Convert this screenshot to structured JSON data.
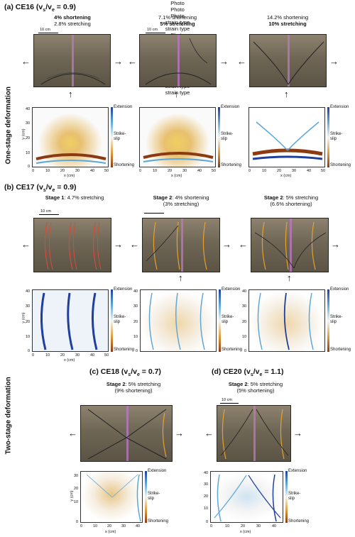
{
  "side_labels": {
    "one_stage": "One-stage deformation",
    "two_stage": "Two-stage deformation"
  },
  "sections": {
    "a": {
      "prefix": "(a) CE16 (v",
      "ratio": " = 0.9)"
    },
    "b": {
      "prefix": "(b) CE17 (v",
      "ratio": " = 0.9)"
    },
    "c": {
      "prefix": "(c) CE18 (v",
      "ratio": " = 0.7)"
    },
    "d": {
      "prefix": "(d) CE20 (v",
      "ratio": " = 1.1)"
    }
  },
  "sub_s": "s",
  "sub_e": "e",
  "velocity_sep": "/v",
  "captions": {
    "a1_l1": "4% shortening",
    "a1_l2": "2.8% stretching",
    "a2_l1": "7.1% shortening",
    "a2_l2": "5% stretching",
    "a3_l1": "14.2% shortening",
    "a3_l2": "10% stretching",
    "b1_bold": "Stage 1",
    "b1_rest": ": 4.7% stretching",
    "b2_bold": "Stage 2",
    "b2_rest": ": 4% shortening",
    "b2_l2": "(3% stretching)",
    "b3_bold": "Stage 2",
    "b3_rest": ": 5% stretching",
    "b3_l2": "(6.6% shortening)",
    "c_bold": "Stage 2",
    "c_rest": ": 5% stretching",
    "c_l2": "(9% shortening)",
    "d_bold": "Stage 2",
    "d_rest": ": 5% stretching",
    "d_l2": "(5% shortening)"
  },
  "photo_label": "Photo",
  "strain_label": "strain type",
  "scale_label": "10 cm",
  "colorbar": {
    "top": "Extension",
    "mid1": "Strike-",
    "mid2": "slip",
    "bot": "Shortening"
  },
  "axes": {
    "ylabel": "y (cm)",
    "xlabel": "x (cm)",
    "yticks": [
      "40",
      "30",
      "20",
      "10",
      "0"
    ],
    "xticks50": [
      "0",
      "10",
      "20",
      "30",
      "40",
      "50"
    ],
    "xticks40": [
      "0",
      "10",
      "20",
      "30",
      "40"
    ],
    "yticks_c": [
      "30",
      "20",
      "10",
      "0"
    ],
    "yticks_d": [
      "40",
      "30",
      "20",
      "10",
      "0"
    ]
  },
  "colors": {
    "extension": "#1e3f9e",
    "shortening": "#8b3a12",
    "fault_orange": "#e8a12a",
    "fault_red": "#d94a3a",
    "midline": "#c078c8"
  }
}
